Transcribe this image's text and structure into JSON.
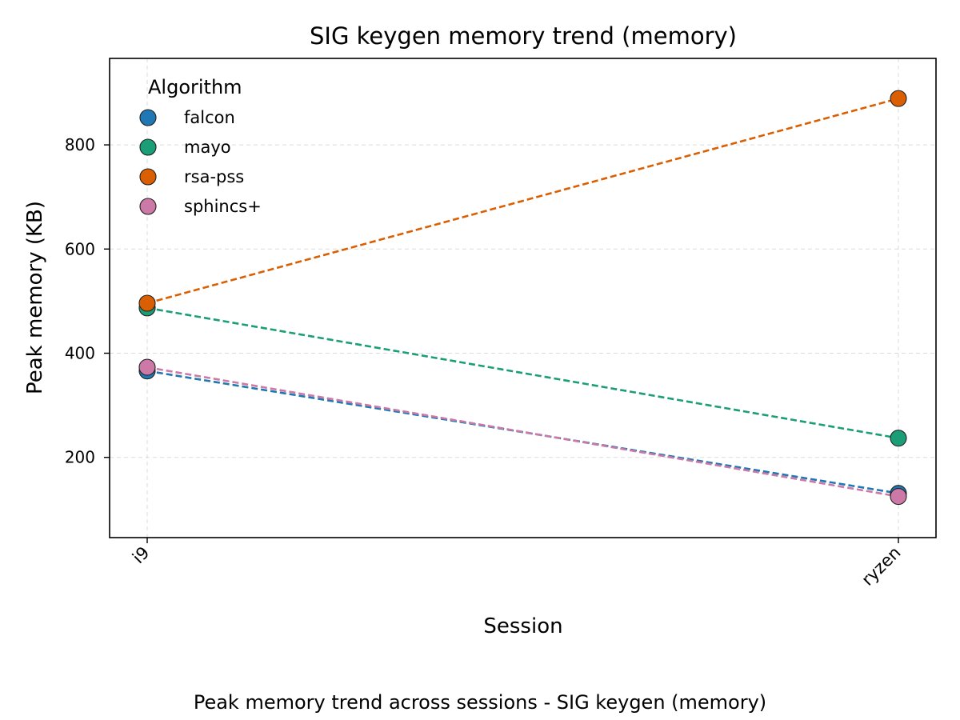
{
  "chart_data": {
    "type": "line",
    "title": "SIG keygen memory trend (memory)",
    "xlabel": "Session",
    "ylabel": "Peak memory (KB)",
    "categories": [
      "i9",
      "ryzen"
    ],
    "ylim": [
      46,
      966
    ],
    "yticks": [
      200,
      400,
      600,
      800
    ],
    "grid": true,
    "legend": {
      "title": "Algorithm",
      "placement": "top-left"
    },
    "series": [
      {
        "name": "falcon",
        "values": [
          366,
          131
        ],
        "color": "#1f78b4"
      },
      {
        "name": "mayo",
        "values": [
          487,
          237
        ],
        "color": "#1b9e77"
      },
      {
        "name": "rsa-pss",
        "values": [
          496,
          889
        ],
        "color": "#d95f02"
      },
      {
        "name": "sphincs+",
        "values": [
          373,
          125
        ],
        "color": "#cc79a7"
      }
    ]
  },
  "caption": "Peak memory trend across sessions - SIG keygen (memory)"
}
